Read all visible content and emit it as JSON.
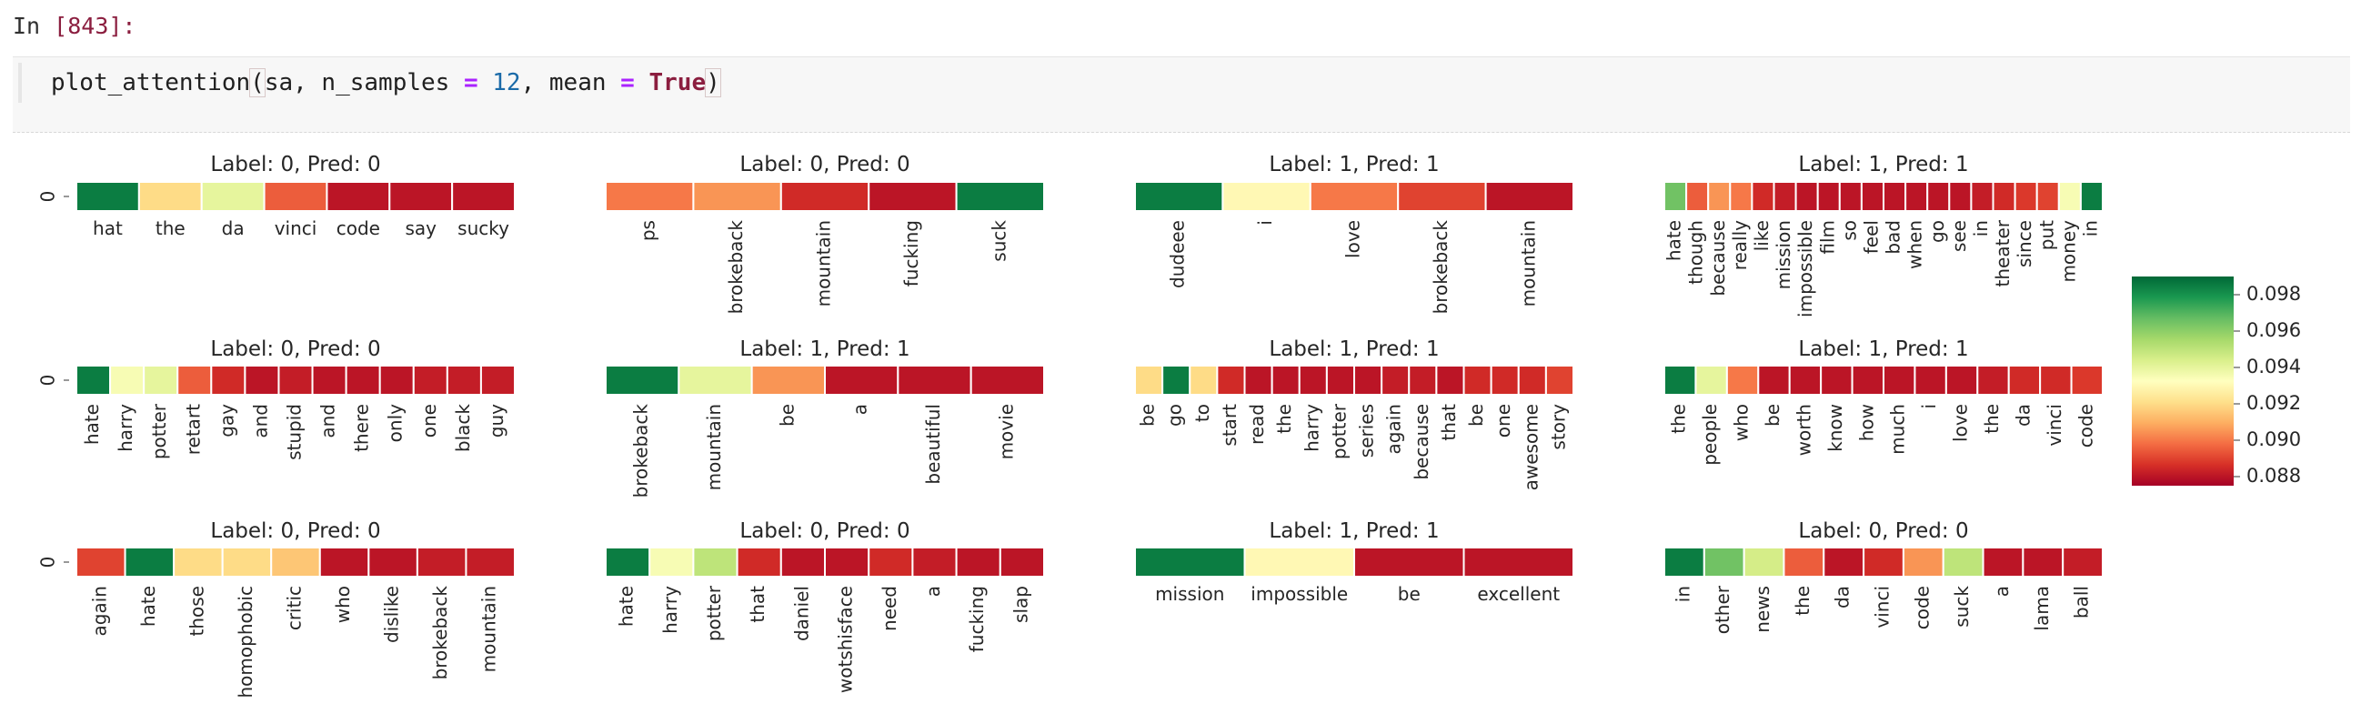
{
  "cell": {
    "prompt_label": "In",
    "prompt_number": "[843]:",
    "code": {
      "func": "plot_attention",
      "args_text": "sa, n_samples ",
      "eq1": "=",
      "n": "12",
      "mid": ", mean ",
      "eq2": "=",
      "flag": "True"
    }
  },
  "chart_data": {
    "type": "heatmap",
    "colormap": "RdYlGn",
    "colorbar": {
      "min": 0.0875,
      "max": 0.099,
      "ticks": [
        "0.098",
        "0.096",
        "0.094",
        "0.092",
        "0.090",
        "0.088"
      ],
      "tick_values": [
        0.098,
        0.096,
        0.094,
        0.092,
        0.09,
        0.088
      ]
    },
    "plots": [
      {
        "title": "Label: 0, Pred: 0",
        "ytick": "0",
        "rotated": false,
        "tokens": [
          "hat",
          "the",
          "da",
          "vinci",
          "code",
          "say",
          "sucky"
        ],
        "values": [
          0.0985,
          0.092,
          0.094,
          0.0895,
          0.088,
          0.088,
          0.088
        ]
      },
      {
        "title": "Label: 0, Pred: 0",
        "ytick": "",
        "rotated": true,
        "tokens": [
          "ps",
          "brokeback",
          "mountain",
          "fucking",
          "suck"
        ],
        "values": [
          0.09,
          0.0905,
          0.0885,
          0.088,
          0.0985
        ]
      },
      {
        "title": "Label: 1, Pred: 1",
        "ytick": "",
        "rotated": true,
        "tokens": [
          "dudeee",
          "i",
          "love",
          "brokeback",
          "mountain"
        ],
        "values": [
          0.0985,
          0.093,
          0.09,
          0.089,
          0.088
        ]
      },
      {
        "title": "Label: 1, Pred: 1",
        "ytick": "",
        "rotated": true,
        "tokens": [
          "hate",
          "though",
          "because",
          "really",
          "like",
          "mission",
          "impossible",
          "film",
          "so",
          "feel",
          "bad",
          "when",
          "go",
          "see",
          "in",
          "theater",
          "since",
          "put",
          "money",
          "in"
        ],
        "values": [
          0.0965,
          0.0895,
          0.0905,
          0.09,
          0.0885,
          0.0882,
          0.088,
          0.088,
          0.088,
          0.088,
          0.088,
          0.088,
          0.088,
          0.088,
          0.0882,
          0.0885,
          0.0888,
          0.089,
          0.0935,
          0.0985
        ]
      },
      {
        "title": "Label: 0, Pred: 0",
        "ytick": "0",
        "rotated": true,
        "tokens": [
          "hate",
          "harry",
          "potter",
          "retart",
          "gay",
          "and",
          "stupid",
          "and",
          "there",
          "only",
          "one",
          "black",
          "guy"
        ],
        "values": [
          0.0985,
          0.0935,
          0.094,
          0.0895,
          0.0885,
          0.088,
          0.0882,
          0.088,
          0.088,
          0.088,
          0.0882,
          0.0882,
          0.0882
        ]
      },
      {
        "title": "Label: 1, Pred: 1",
        "ytick": "",
        "rotated": true,
        "tokens": [
          "brokeback",
          "mountain",
          "be",
          "a",
          "beautiful",
          "movie"
        ],
        "values": [
          0.0985,
          0.094,
          0.0905,
          0.088,
          0.088,
          0.088
        ]
      },
      {
        "title": "Label: 1, Pred: 1",
        "ytick": "",
        "rotated": true,
        "tokens": [
          "be",
          "go",
          "to",
          "start",
          "read",
          "the",
          "harry",
          "potter",
          "series",
          "again",
          "because",
          "that",
          "be",
          "one",
          "awesome",
          "story"
        ],
        "values": [
          0.092,
          0.0985,
          0.092,
          0.0885,
          0.088,
          0.088,
          0.088,
          0.088,
          0.088,
          0.0882,
          0.0882,
          0.088,
          0.0885,
          0.0885,
          0.0885,
          0.089
        ]
      },
      {
        "title": "Label: 1, Pred: 1",
        "ytick": "",
        "rotated": true,
        "tokens": [
          "the",
          "people",
          "who",
          "be",
          "worth",
          "know",
          "how",
          "much",
          "i",
          "love",
          "the",
          "da",
          "vinci",
          "code"
        ],
        "values": [
          0.0985,
          0.094,
          0.09,
          0.088,
          0.088,
          0.088,
          0.088,
          0.088,
          0.088,
          0.088,
          0.0882,
          0.0885,
          0.0885,
          0.0888
        ]
      },
      {
        "title": "Label: 0, Pred: 0",
        "ytick": "0",
        "rotated": true,
        "tokens": [
          "again",
          "hate",
          "those",
          "homophobic",
          "critic",
          "who",
          "dislike",
          "brokeback",
          "mountain"
        ],
        "values": [
          0.089,
          0.0985,
          0.092,
          0.092,
          0.0915,
          0.088,
          0.088,
          0.0882,
          0.0882
        ]
      },
      {
        "title": "Label: 0, Pred: 0",
        "ytick": "",
        "rotated": true,
        "tokens": [
          "hate",
          "harry",
          "potter",
          "that",
          "daniel",
          "wotshisface",
          "need",
          "a",
          "fucking",
          "slap"
        ],
        "values": [
          0.0985,
          0.0935,
          0.095,
          0.0885,
          0.088,
          0.088,
          0.0885,
          0.0882,
          0.088,
          0.088
        ]
      },
      {
        "title": "Label: 1, Pred: 1",
        "ytick": "",
        "rotated": false,
        "tokens": [
          "mission",
          "impossible",
          "be",
          "excellent"
        ],
        "values": [
          0.0985,
          0.093,
          0.088,
          0.088
        ]
      },
      {
        "title": "Label: 0, Pred: 0",
        "ytick": "",
        "rotated": true,
        "tokens": [
          "in",
          "other",
          "news",
          "the",
          "da",
          "vinci",
          "code",
          "suck",
          "a",
          "lama",
          "ball"
        ],
        "values": [
          0.0985,
          0.0965,
          0.0945,
          0.0895,
          0.088,
          0.0885,
          0.0905,
          0.095,
          0.088,
          0.088,
          0.0882
        ]
      }
    ]
  }
}
